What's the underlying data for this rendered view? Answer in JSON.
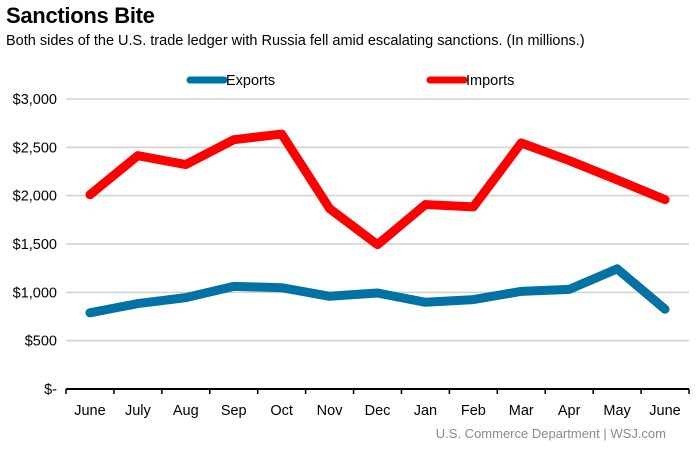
{
  "title": "Sanctions Bite",
  "subtitle": "Both sides of the U.S. trade ledger with Russia fell amid escalating sanctions. (In millions.)",
  "source": "U.S. Commerce Department  |  WSJ.com",
  "chart_data": {
    "type": "line",
    "title": "Sanctions Bite",
    "categories": [
      "June",
      "July",
      "Aug",
      "Sep",
      "Oct",
      "Nov",
      "Dec",
      "Jan",
      "Feb",
      "Mar",
      "Apr",
      "May",
      "June"
    ],
    "ylim": [
      0,
      3000
    ],
    "yticks": [
      0,
      500,
      1000,
      1500,
      2000,
      2500,
      3000
    ],
    "ytick_labels": [
      "$-",
      "$500",
      "$1,000",
      "$1,500",
      "$2,000",
      "$2,500",
      "$3,000"
    ],
    "grid": true,
    "legend": "top",
    "series": [
      {
        "name": "Exports",
        "color": "#0072a3",
        "values": [
          788,
          884,
          945,
          1062,
          1048,
          959,
          993,
          897,
          925,
          1010,
          1031,
          1243,
          825
        ]
      },
      {
        "name": "Imports",
        "color": "#ff0000",
        "values": [
          2010,
          2414,
          2322,
          2579,
          2637,
          1866,
          1493,
          1908,
          1884,
          2545,
          2363,
          2164,
          1959
        ]
      }
    ]
  }
}
